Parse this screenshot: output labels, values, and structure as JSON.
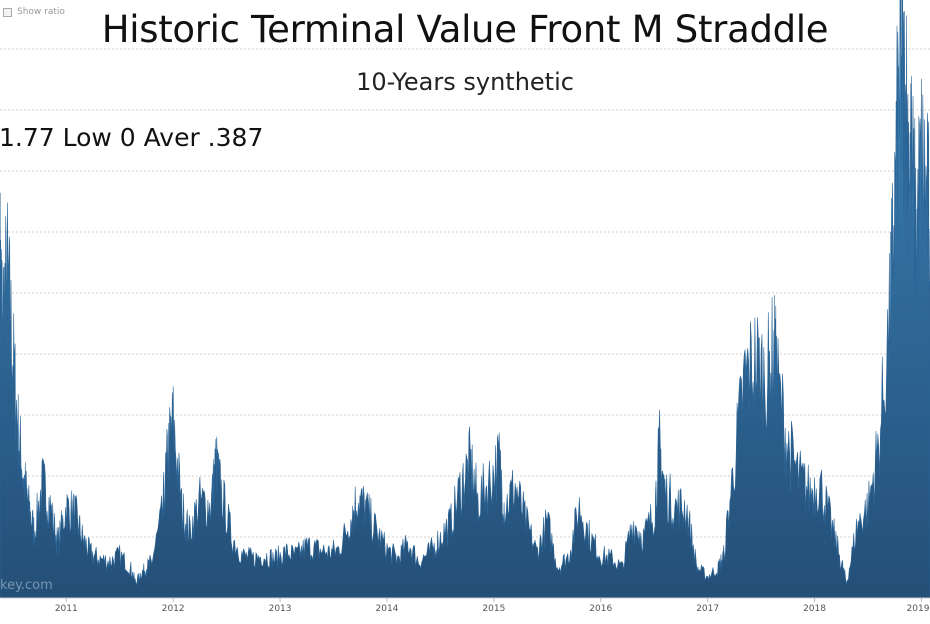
{
  "header": {
    "title": "Historic Terminal Value Front M Straddle",
    "subtitle": "10-Years synthetic",
    "annotation": "1.77 Low 0 Aver .387"
  },
  "controls": {
    "show_ratio_label": "Show ratio"
  },
  "watermark_text": "key.com",
  "colors": {
    "area_fill_top": "#3a85bd",
    "area_fill_bottom": "#24537a",
    "grid": "#d0d0d0"
  },
  "chart_data": {
    "type": "area",
    "title": "Historic Terminal Value Front M Straddle",
    "subtitle": "10-Years synthetic",
    "x_tick_labels": [
      "2011",
      "2012",
      "2013",
      "2014",
      "2015",
      "2016",
      "2017",
      "2018",
      "2019"
    ],
    "x_range": [
      2010.38,
      2019.08
    ],
    "y_range": [
      0,
      1.87
    ],
    "grid": true,
    "x": [
      2010.38,
      2010.4,
      2010.45,
      2010.5,
      2010.55,
      2010.6,
      2010.65,
      2010.7,
      2010.78,
      2010.85,
      2010.92,
      2011.0,
      2011.08,
      2011.15,
      2011.22,
      2011.3,
      2011.4,
      2011.5,
      2011.6,
      2011.65,
      2011.7,
      2011.75,
      2011.8,
      2011.9,
      2011.95,
      2012.0,
      2012.08,
      2012.15,
      2012.25,
      2012.35,
      2012.4,
      2012.45,
      2012.55,
      2012.65,
      2012.75,
      2012.85,
      2012.95,
      2013.05,
      2013.15,
      2013.25,
      2013.35,
      2013.45,
      2013.55,
      2013.65,
      2013.72,
      2013.8,
      2013.9,
      2014.0,
      2014.1,
      2014.2,
      2014.3,
      2014.4,
      2014.5,
      2014.6,
      2014.7,
      2014.78,
      2014.85,
      2014.95,
      2015.05,
      2015.1,
      2015.2,
      2015.3,
      2015.4,
      2015.5,
      2015.6,
      2015.7,
      2015.8,
      2015.9,
      2016.0,
      2016.1,
      2016.2,
      2016.3,
      2016.4,
      2016.5,
      2016.55,
      2016.6,
      2016.7,
      2016.8,
      2016.9,
      2017.0,
      2017.1,
      2017.15,
      2017.25,
      2017.35,
      2017.45,
      2017.55,
      2017.62,
      2017.65,
      2017.75,
      2017.85,
      2017.95,
      2018.05,
      2018.15,
      2018.25,
      2018.3,
      2018.4,
      2018.5,
      2018.6,
      2018.7,
      2018.75,
      2018.8,
      2018.83,
      2018.86,
      2018.9,
      2018.95,
      2019.0,
      2019.05,
      2019.08
    ],
    "y": [
      1.1,
      0.95,
      1.06,
      0.8,
      0.55,
      0.4,
      0.3,
      0.22,
      0.38,
      0.3,
      0.18,
      0.3,
      0.28,
      0.2,
      0.15,
      0.13,
      0.12,
      0.14,
      0.1,
      0.05,
      0.08,
      0.1,
      0.12,
      0.28,
      0.48,
      0.58,
      0.3,
      0.22,
      0.32,
      0.3,
      0.45,
      0.35,
      0.2,
      0.14,
      0.13,
      0.14,
      0.13,
      0.15,
      0.14,
      0.17,
      0.16,
      0.15,
      0.16,
      0.25,
      0.33,
      0.3,
      0.22,
      0.16,
      0.13,
      0.18,
      0.12,
      0.15,
      0.2,
      0.25,
      0.38,
      0.45,
      0.32,
      0.38,
      0.45,
      0.3,
      0.37,
      0.25,
      0.15,
      0.25,
      0.1,
      0.14,
      0.3,
      0.2,
      0.14,
      0.13,
      0.1,
      0.25,
      0.2,
      0.28,
      0.5,
      0.35,
      0.3,
      0.3,
      0.1,
      0.07,
      0.1,
      0.14,
      0.45,
      0.73,
      0.78,
      0.72,
      0.82,
      0.72,
      0.5,
      0.4,
      0.35,
      0.38,
      0.25,
      0.12,
      0.05,
      0.24,
      0.3,
      0.5,
      0.9,
      1.3,
      1.77,
      1.65,
      1.6,
      1.45,
      1.2,
      1.42,
      1.3,
      1.22
    ],
    "y_low": 0,
    "y_average": 0.387,
    "y_high": 1.77
  }
}
